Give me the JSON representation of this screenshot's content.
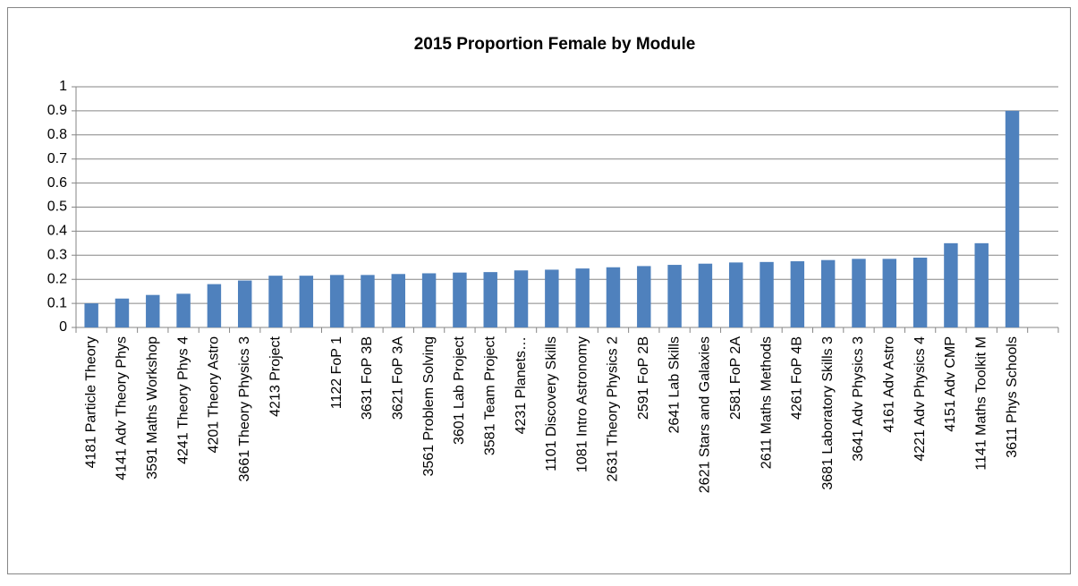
{
  "chart_data": {
    "type": "bar",
    "title": "2015 Proportion Female by Module",
    "categories": [
      "4181 Particle Theory",
      "4141 Adv Theory Phys",
      "3591 Maths Workshop",
      "4241 Theory Phys 4",
      "4201 Theory Astro",
      "3661 Theory Physics 3",
      "4213 Project",
      null,
      "1122 FoP 1",
      "3631 FoP 3B",
      "3621 FoP 3A",
      "3561 Problem Solving",
      "3601 Lab Project",
      "3581 Team Project",
      "4231 Planets…",
      "1101 Discovery Skills",
      "1081 Intro Astronomy",
      "2631 Theory Physics 2",
      "2591 FoP 2B",
      "2641 Lab Skills",
      "2621 Stars and Galaxies",
      "2581 FoP 2A",
      "2611 Maths Methods",
      "4261 FoP 4B",
      "3681 Laboratory Skills 3",
      "3641 Adv Physics 3",
      "4161 Adv Astro",
      "4221 Adv Physics 4",
      "4151 Adv CMP",
      "1141 Maths Toolkit M",
      "3611 Phys Schools",
      null
    ],
    "values": [
      0.1,
      0.12,
      0.135,
      0.14,
      0.18,
      0.195,
      0.215,
      0.215,
      0.218,
      0.218,
      0.222,
      0.225,
      0.228,
      0.23,
      0.237,
      0.24,
      0.245,
      0.25,
      0.255,
      0.26,
      0.265,
      0.27,
      0.272,
      0.275,
      0.28,
      0.285,
      0.285,
      0.29,
      0.35,
      0.35,
      0.9,
      null
    ],
    "color": "#4f81bd",
    "ylim": [
      0,
      1
    ],
    "yticks": [
      0,
      0.1,
      0.2,
      0.3,
      0.4,
      0.5,
      0.6,
      0.7,
      0.8,
      0.9,
      1
    ],
    "grid": true
  }
}
